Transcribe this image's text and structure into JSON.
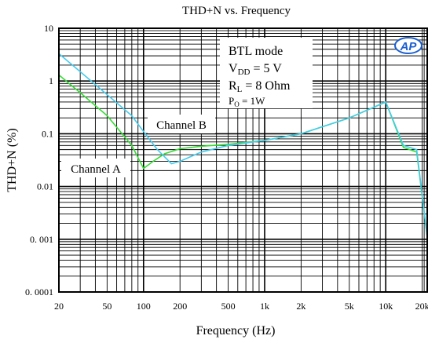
{
  "chart_data": {
    "type": "line",
    "title": "THD+N vs. Frequency",
    "xlabel": "Frequency (Hz)",
    "ylabel": "THD+N (%)",
    "x_scale": "log",
    "y_scale": "log",
    "xlim": [
      20,
      22000
    ],
    "ylim": [
      0.0001,
      10
    ],
    "grid": true,
    "x_ticks": [
      {
        "value": 20,
        "label": "20"
      },
      {
        "value": 50,
        "label": "50"
      },
      {
        "value": 100,
        "label": "100"
      },
      {
        "value": 200,
        "label": "200"
      },
      {
        "value": 500,
        "label": "500"
      },
      {
        "value": 1000,
        "label": "1k"
      },
      {
        "value": 2000,
        "label": "2k"
      },
      {
        "value": 5000,
        "label": "5k"
      },
      {
        "value": 10000,
        "label": "10k"
      },
      {
        "value": 20000,
        "label": "20k"
      }
    ],
    "y_ticks": [
      {
        "value": 10,
        "label": "10"
      },
      {
        "value": 1,
        "label": "1"
      },
      {
        "value": 0.1,
        "label": "0.1"
      },
      {
        "value": 0.01,
        "label": "0.01"
      },
      {
        "value": 0.001,
        "label": "0. 001"
      },
      {
        "value": 0.0001,
        "label": "0. 0001"
      }
    ],
    "annotation_box": {
      "mode": "BTL mode",
      "vdd": {
        "main": "V",
        "sub": "DD",
        "rest": " = 5 V"
      },
      "rl": {
        "main": "R",
        "sub": "L",
        "rest": " = 8 Ohm"
      },
      "po": {
        "main": "P",
        "sub": "O",
        "rest": " = 1W"
      }
    },
    "logo_text": "AP",
    "series": [
      {
        "name": "Channel A",
        "color": "#33dd33",
        "points": [
          [
            20,
            1.3
          ],
          [
            30,
            0.6
          ],
          [
            50,
            0.22
          ],
          [
            80,
            0.06
          ],
          [
            100,
            0.022
          ],
          [
            120,
            0.03
          ],
          [
            150,
            0.042
          ],
          [
            200,
            0.052
          ],
          [
            300,
            0.058
          ],
          [
            500,
            0.063
          ],
          [
            1000,
            0.075
          ],
          [
            2000,
            0.1
          ],
          [
            5000,
            0.2
          ],
          [
            8000,
            0.32
          ],
          [
            10000,
            0.4
          ],
          [
            14000,
            0.055
          ],
          [
            18000,
            0.045
          ],
          [
            22000,
            0.0011
          ]
        ]
      },
      {
        "name": "Channel B",
        "color": "#44ccee",
        "points": [
          [
            20,
            3.3
          ],
          [
            30,
            1.5
          ],
          [
            50,
            0.55
          ],
          [
            80,
            0.22
          ],
          [
            100,
            0.11
          ],
          [
            130,
            0.05
          ],
          [
            170,
            0.027
          ],
          [
            200,
            0.03
          ],
          [
            300,
            0.045
          ],
          [
            500,
            0.06
          ],
          [
            1000,
            0.075
          ],
          [
            2000,
            0.1
          ],
          [
            5000,
            0.2
          ],
          [
            8000,
            0.32
          ],
          [
            10000,
            0.4
          ],
          [
            14000,
            0.06
          ],
          [
            18000,
            0.05
          ],
          [
            22000,
            0.0011
          ]
        ]
      }
    ]
  }
}
